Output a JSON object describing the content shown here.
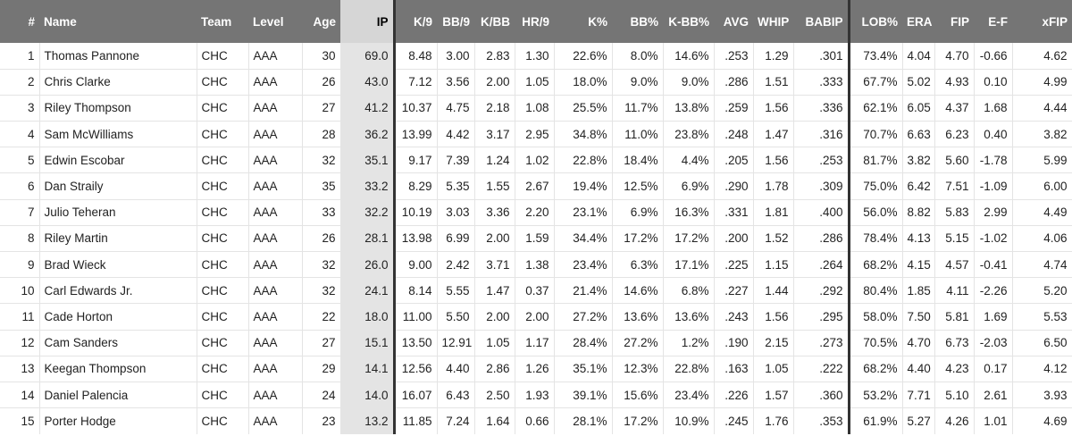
{
  "columns": [
    "#",
    "Name",
    "Team",
    "Level",
    "Age",
    "IP",
    "K/9",
    "BB/9",
    "K/BB",
    "HR/9",
    "K%",
    "BB%",
    "K-BB%",
    "AVG",
    "WHIP",
    "BABIP",
    "LOB%",
    "ERA",
    "FIP",
    "E-F",
    "xFIP"
  ],
  "rows": [
    [
      "1",
      "Thomas Pannone",
      "CHC",
      "AAA",
      "30",
      "69.0",
      "8.48",
      "3.00",
      "2.83",
      "1.30",
      "22.6%",
      "8.0%",
      "14.6%",
      ".253",
      "1.29",
      ".301",
      "73.4%",
      "4.04",
      "4.70",
      "-0.66",
      "4.62"
    ],
    [
      "2",
      "Chris Clarke",
      "CHC",
      "AAA",
      "26",
      "43.0",
      "7.12",
      "3.56",
      "2.00",
      "1.05",
      "18.0%",
      "9.0%",
      "9.0%",
      ".286",
      "1.51",
      ".333",
      "67.7%",
      "5.02",
      "4.93",
      "0.10",
      "4.99"
    ],
    [
      "3",
      "Riley Thompson",
      "CHC",
      "AAA",
      "27",
      "41.2",
      "10.37",
      "4.75",
      "2.18",
      "1.08",
      "25.5%",
      "11.7%",
      "13.8%",
      ".259",
      "1.56",
      ".336",
      "62.1%",
      "6.05",
      "4.37",
      "1.68",
      "4.44"
    ],
    [
      "4",
      "Sam McWilliams",
      "CHC",
      "AAA",
      "28",
      "36.2",
      "13.99",
      "4.42",
      "3.17",
      "2.95",
      "34.8%",
      "11.0%",
      "23.8%",
      ".248",
      "1.47",
      ".316",
      "70.7%",
      "6.63",
      "6.23",
      "0.40",
      "3.82"
    ],
    [
      "5",
      "Edwin Escobar",
      "CHC",
      "AAA",
      "32",
      "35.1",
      "9.17",
      "7.39",
      "1.24",
      "1.02",
      "22.8%",
      "18.4%",
      "4.4%",
      ".205",
      "1.56",
      ".253",
      "81.7%",
      "3.82",
      "5.60",
      "-1.78",
      "5.99"
    ],
    [
      "6",
      "Dan Straily",
      "CHC",
      "AAA",
      "35",
      "33.2",
      "8.29",
      "5.35",
      "1.55",
      "2.67",
      "19.4%",
      "12.5%",
      "6.9%",
      ".290",
      "1.78",
      ".309",
      "75.0%",
      "6.42",
      "7.51",
      "-1.09",
      "6.00"
    ],
    [
      "7",
      "Julio Teheran",
      "CHC",
      "AAA",
      "33",
      "32.2",
      "10.19",
      "3.03",
      "3.36",
      "2.20",
      "23.1%",
      "6.9%",
      "16.3%",
      ".331",
      "1.81",
      ".400",
      "56.0%",
      "8.82",
      "5.83",
      "2.99",
      "4.49"
    ],
    [
      "8",
      "Riley Martin",
      "CHC",
      "AAA",
      "26",
      "28.1",
      "13.98",
      "6.99",
      "2.00",
      "1.59",
      "34.4%",
      "17.2%",
      "17.2%",
      ".200",
      "1.52",
      ".286",
      "78.4%",
      "4.13",
      "5.15",
      "-1.02",
      "4.06"
    ],
    [
      "9",
      "Brad Wieck",
      "CHC",
      "AAA",
      "32",
      "26.0",
      "9.00",
      "2.42",
      "3.71",
      "1.38",
      "23.4%",
      "6.3%",
      "17.1%",
      ".225",
      "1.15",
      ".264",
      "68.2%",
      "4.15",
      "4.57",
      "-0.41",
      "4.74"
    ],
    [
      "10",
      "Carl Edwards Jr.",
      "CHC",
      "AAA",
      "32",
      "24.1",
      "8.14",
      "5.55",
      "1.47",
      "0.37",
      "21.4%",
      "14.6%",
      "6.8%",
      ".227",
      "1.44",
      ".292",
      "80.4%",
      "1.85",
      "4.11",
      "-2.26",
      "5.20"
    ],
    [
      "11",
      "Cade Horton",
      "CHC",
      "AAA",
      "22",
      "18.0",
      "11.00",
      "5.50",
      "2.00",
      "2.00",
      "27.2%",
      "13.6%",
      "13.6%",
      ".243",
      "1.56",
      ".295",
      "58.0%",
      "7.50",
      "5.81",
      "1.69",
      "5.53"
    ],
    [
      "12",
      "Cam Sanders",
      "CHC",
      "AAA",
      "27",
      "15.1",
      "13.50",
      "12.91",
      "1.05",
      "1.17",
      "28.4%",
      "27.2%",
      "1.2%",
      ".190",
      "2.15",
      ".273",
      "70.5%",
      "4.70",
      "6.73",
      "-2.03",
      "6.50"
    ],
    [
      "13",
      "Keegan Thompson",
      "CHC",
      "AAA",
      "29",
      "14.1",
      "12.56",
      "4.40",
      "2.86",
      "1.26",
      "35.1%",
      "12.3%",
      "22.8%",
      ".163",
      "1.05",
      ".222",
      "68.2%",
      "4.40",
      "4.23",
      "0.17",
      "4.12"
    ],
    [
      "14",
      "Daniel Palencia",
      "CHC",
      "AAA",
      "24",
      "14.0",
      "16.07",
      "6.43",
      "2.50",
      "1.93",
      "39.1%",
      "15.6%",
      "23.4%",
      ".226",
      "1.57",
      ".360",
      "53.2%",
      "7.71",
      "5.10",
      "2.61",
      "3.93"
    ],
    [
      "15",
      "Porter Hodge",
      "CHC",
      "AAA",
      "23",
      "13.2",
      "11.85",
      "7.24",
      "1.64",
      "0.66",
      "28.1%",
      "17.2%",
      "10.9%",
      ".245",
      "1.76",
      ".353",
      "61.9%",
      "5.27",
      "4.26",
      "1.01",
      "4.69"
    ]
  ],
  "colors": {
    "header_bg": "#757575",
    "header_text": "#ffffff",
    "sorted_column_bg": "#e4e4e4",
    "separator": "#333333"
  },
  "sorted_column": "IP"
}
